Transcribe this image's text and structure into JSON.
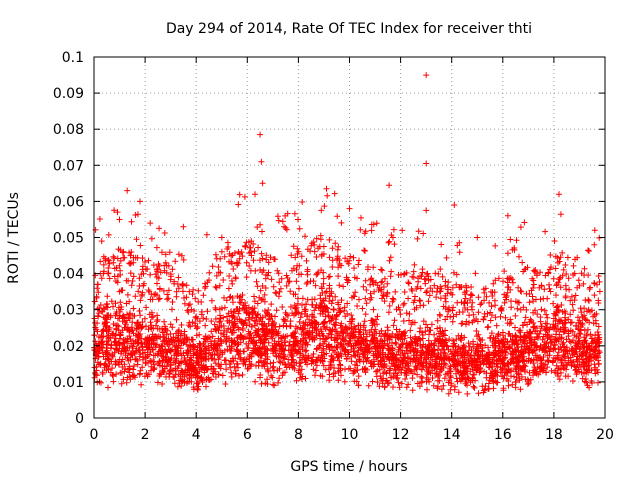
{
  "chart_data": {
    "type": "scatter",
    "title": "Day 294 of 2014, Rate Of TEC Index for receiver thti",
    "xlabel": "GPS time / hours",
    "ylabel": "ROTI / TECUs",
    "xlim": [
      0,
      20
    ],
    "ylim": [
      0,
      0.1
    ],
    "xticks": [
      0,
      2,
      4,
      6,
      8,
      10,
      12,
      14,
      16,
      18,
      20
    ],
    "yticks": [
      0,
      0.01,
      0.02,
      0.03,
      0.04,
      0.05,
      0.06,
      0.07,
      0.08,
      0.09,
      0.1
    ],
    "xtick_labels": [
      "0",
      "2",
      "4",
      "6",
      "8",
      "10",
      "12",
      "14",
      "16",
      "18",
      "20"
    ],
    "ytick_labels": [
      "0",
      "0.01",
      "0.02",
      "0.03",
      "0.04",
      "0.05",
      "0.06",
      "0.07",
      "0.08",
      "0.09",
      "0.1"
    ],
    "grid": true,
    "marker": "+",
    "marker_color": "#ff0000",
    "point_count": 4200,
    "series": [
      {
        "name": "ROTI",
        "x_range": [
          0,
          19.8
        ],
        "baseline_envelope": [
          [
            0.0,
            0.008,
            0.032
          ],
          [
            1.0,
            0.008,
            0.035
          ],
          [
            2.0,
            0.008,
            0.032
          ],
          [
            3.0,
            0.007,
            0.03
          ],
          [
            4.0,
            0.007,
            0.022
          ],
          [
            5.0,
            0.008,
            0.035
          ],
          [
            6.0,
            0.009,
            0.038
          ],
          [
            7.0,
            0.008,
            0.032
          ],
          [
            8.0,
            0.009,
            0.034
          ],
          [
            9.0,
            0.009,
            0.04
          ],
          [
            10.0,
            0.008,
            0.034
          ],
          [
            11.0,
            0.008,
            0.03
          ],
          [
            12.0,
            0.007,
            0.028
          ],
          [
            13.0,
            0.007,
            0.03
          ],
          [
            14.0,
            0.006,
            0.026
          ],
          [
            15.0,
            0.006,
            0.024
          ],
          [
            16.0,
            0.007,
            0.026
          ],
          [
            17.0,
            0.008,
            0.03
          ],
          [
            18.0,
            0.008,
            0.034
          ],
          [
            19.0,
            0.008,
            0.03
          ],
          [
            19.8,
            0.008,
            0.028
          ]
        ],
        "notable_points": [
          [
            13.0,
            0.095
          ],
          [
            6.5,
            0.0785
          ],
          [
            6.55,
            0.071
          ],
          [
            13.0,
            0.0705
          ],
          [
            6.6,
            0.065
          ],
          [
            11.55,
            0.0645
          ],
          [
            9.1,
            0.0635
          ],
          [
            1.3,
            0.063
          ],
          [
            6.3,
            0.062
          ],
          [
            18.2,
            0.062
          ],
          [
            1.8,
            0.06
          ],
          [
            14.1,
            0.059
          ],
          [
            13.0,
            0.0575
          ],
          [
            10.0,
            0.058
          ],
          [
            16.2,
            0.056
          ],
          [
            1.0,
            0.055
          ],
          [
            2.2,
            0.054
          ],
          [
            3.5,
            0.053
          ],
          [
            19.6,
            0.052
          ],
          [
            0.3,
            0.049
          ],
          [
            5.0,
            0.05
          ],
          [
            11.7,
            0.05
          ],
          [
            15.0,
            0.05
          ]
        ]
      }
    ]
  }
}
